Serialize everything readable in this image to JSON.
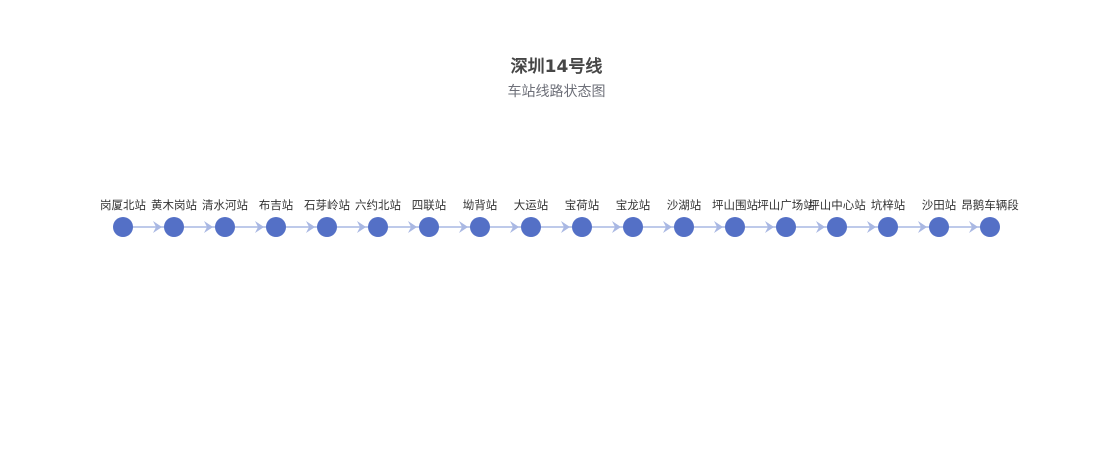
{
  "chart_data": {
    "type": "graph",
    "title": "深圳14号线",
    "subtitle": "车站线路状态图",
    "nodes": [
      "岗厦北站",
      "黄木岗站",
      "清水河站",
      "布吉站",
      "石芽岭站",
      "六约北站",
      "四联站",
      "坳背站",
      "大运站",
      "宝荷站",
      "宝龙站",
      "沙湖站",
      "坪山围站",
      "坪山广场站",
      "坪山中心站",
      "坑梓站",
      "沙田站",
      "昂鹅车辆段"
    ],
    "links": [
      [
        "岗厦北站",
        "黄木岗站"
      ],
      [
        "黄木岗站",
        "清水河站"
      ],
      [
        "清水河站",
        "布吉站"
      ],
      [
        "布吉站",
        "石芽岭站"
      ],
      [
        "石芽岭站",
        "六约北站"
      ],
      [
        "六约北站",
        "四联站"
      ],
      [
        "四联站",
        "坳背站"
      ],
      [
        "坳背站",
        "大运站"
      ],
      [
        "大运站",
        "宝荷站"
      ],
      [
        "宝荷站",
        "宝龙站"
      ],
      [
        "宝龙站",
        "沙湖站"
      ],
      [
        "沙湖站",
        "坪山围站"
      ],
      [
        "坪山围站",
        "坪山广场站"
      ],
      [
        "坪山广场站",
        "坪山中心站"
      ],
      [
        "坪山中心站",
        "坑梓站"
      ],
      [
        "坑梓站",
        "沙田站"
      ],
      [
        "沙田站",
        "昂鹅车辆段"
      ]
    ],
    "colors": {
      "node": "#5470c6",
      "link": "#a9b8e3",
      "label": "#333333",
      "title": "#464646",
      "subtitle": "#6e7079"
    }
  }
}
